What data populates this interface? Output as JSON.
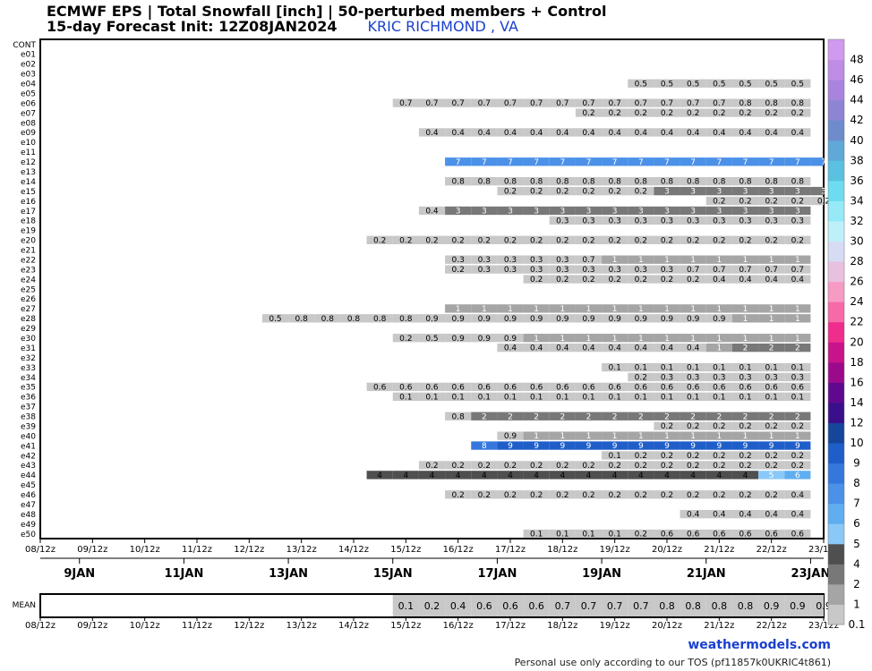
{
  "header": {
    "line1": "ECMWF EPS | Total Snowfall [inch] | 50-perturbed members + Control",
    "line2_prefix": "15-day Forecast Init: 12Z08JAN2024",
    "location": "KRIC RICHMOND      , VA"
  },
  "footer": {
    "brand": "weathermodels.com",
    "tos": "Personal use only according to our TOS (pf11857k0UKRIC4t861)"
  },
  "chart_data": {
    "type": "heatmap",
    "title": "ECMWF EPS | Total Snowfall [inch] | 50-perturbed members + Control",
    "members": [
      "CONT",
      "e01",
      "e02",
      "e03",
      "e04",
      "e05",
      "e06",
      "e07",
      "e08",
      "e09",
      "e10",
      "e11",
      "e12",
      "e13",
      "e14",
      "e15",
      "e16",
      "e17",
      "e18",
      "e19",
      "e20",
      "e21",
      "e22",
      "e23",
      "e24",
      "e25",
      "e26",
      "e27",
      "e28",
      "e29",
      "e30",
      "e31",
      "e32",
      "e33",
      "e34",
      "e35",
      "e36",
      "e37",
      "e38",
      "e39",
      "e40",
      "e41",
      "e42",
      "e43",
      "e44",
      "e45",
      "e46",
      "e47",
      "e48",
      "e49",
      "e50"
    ],
    "x_tick_labels": [
      "08/12z",
      "09/12z",
      "10/12z",
      "11/12z",
      "12/12z",
      "13/12z",
      "14/12z",
      "15/12z",
      "16/12z",
      "17/12z",
      "18/12z",
      "19/12z",
      "20/12z",
      "21/12z",
      "22/12z",
      "23/12z"
    ],
    "date_labels": [
      "9JAN",
      "11JAN",
      "13JAN",
      "15JAN",
      "17JAN",
      "19JAN",
      "21JAN",
      "23JAN"
    ],
    "time_step_hours": 12,
    "start": "08/12z",
    "rows": {
      "e04": {
        "start": 23,
        "values": [
          0.5,
          0.5,
          0.5,
          0.5,
          0.5,
          0.5,
          0.5
        ]
      },
      "e06": {
        "start": 14,
        "values": [
          0.7,
          0.7,
          0.7,
          0.7,
          0.7,
          0.7,
          0.7,
          0.7,
          0.7,
          0.7,
          0.7,
          0.7,
          0.7,
          0.8,
          0.8,
          0.8
        ]
      },
      "e07": {
        "start": 21,
        "values": [
          0.2,
          0.2,
          0.2,
          0.2,
          0.2,
          0.2,
          0.2,
          0.2,
          0.2
        ]
      },
      "e09": {
        "start": 15,
        "values": [
          0.4,
          0.4,
          0.4,
          0.4,
          0.4,
          0.4,
          0.4,
          0.4,
          0.4,
          0.4,
          0.4,
          0.4,
          0.4,
          0.4,
          0.4
        ]
      },
      "e12": {
        "start": 16,
        "values": [
          7,
          7,
          7,
          7,
          7,
          7,
          7,
          7,
          7,
          7,
          7,
          7,
          7,
          7,
          7
        ]
      },
      "e14": {
        "start": 16,
        "values": [
          0.8,
          0.8,
          0.8,
          0.8,
          0.8,
          0.8,
          0.8,
          0.8,
          0.8,
          0.8,
          0.8,
          0.8,
          0.8,
          0.8
        ]
      },
      "e15": {
        "start": 18,
        "values": [
          0.2,
          0.2,
          0.2,
          0.2,
          0.2,
          0.2,
          3,
          3,
          3,
          3,
          3,
          3,
          3
        ]
      },
      "e16": {
        "start": 26,
        "values": [
          0.2,
          0.2,
          0.2,
          0.2,
          0.2
        ]
      },
      "e17": {
        "start": 15,
        "values": [
          0.4,
          3,
          3,
          3,
          3,
          3,
          3,
          3,
          3,
          3,
          3,
          3,
          3,
          3,
          3
        ]
      },
      "e18": {
        "start": 20,
        "values": [
          0.3,
          0.3,
          0.3,
          0.3,
          0.3,
          0.3,
          0.3,
          0.3,
          0.3,
          0.3
        ]
      },
      "e20": {
        "start": 13,
        "values": [
          0.2,
          0.2,
          0.2,
          0.2,
          0.2,
          0.2,
          0.2,
          0.2,
          0.2,
          0.2,
          0.2,
          0.2,
          0.2,
          0.2,
          0.2,
          0.2,
          0.2
        ]
      },
      "e22": {
        "start": 16,
        "values": [
          0.3,
          0.3,
          0.3,
          0.3,
          0.3,
          0.7,
          1,
          1,
          1,
          1,
          1,
          1,
          1,
          1
        ]
      },
      "e23": {
        "start": 16,
        "values": [
          0.2,
          0.3,
          0.3,
          0.3,
          0.3,
          0.3,
          0.3,
          0.3,
          0.3,
          0.7,
          0.7,
          0.7,
          0.7,
          0.7
        ]
      },
      "e24": {
        "start": 19,
        "values": [
          0.2,
          0.2,
          0.2,
          0.2,
          0.2,
          0.2,
          0.2,
          0.4,
          0.4,
          0.4,
          0.4
        ]
      },
      "e27": {
        "start": 16,
        "values": [
          1,
          1,
          1,
          1,
          1,
          1,
          1,
          1,
          1,
          1,
          1,
          1,
          1,
          1
        ]
      },
      "e28": {
        "start": 9,
        "values": [
          0.5,
          0.8,
          0.8,
          0.8,
          0.8,
          0.8,
          0.9,
          0.9,
          0.9,
          0.9,
          0.9,
          0.9,
          0.9,
          0.9,
          0.9,
          0.9,
          0.9,
          0.9,
          1,
          1,
          1
        ]
      },
      "e30": {
        "start": 14,
        "values": [
          0.2,
          0.5,
          0.9,
          0.9,
          0.9,
          1.0,
          1.0,
          1.0,
          1.0,
          1.0,
          1.0,
          1.0,
          1.0,
          1.0,
          1.0,
          1.0
        ]
      },
      "e31": {
        "start": 18,
        "values": [
          0.4,
          0.4,
          0.4,
          0.4,
          0.4,
          0.4,
          0.4,
          0.4,
          1,
          2,
          2,
          2
        ]
      },
      "e33": {
        "start": 22,
        "values": [
          0.1,
          0.1,
          0.1,
          0.1,
          0.1,
          0.1,
          0.1,
          0.1
        ]
      },
      "e34": {
        "start": 23,
        "values": [
          0.2,
          0.3,
          0.3,
          0.3,
          0.3,
          0.3,
          0.3
        ]
      },
      "e35": {
        "start": 13,
        "values": [
          0.6,
          0.6,
          0.6,
          0.6,
          0.6,
          0.6,
          0.6,
          0.6,
          0.6,
          0.6,
          0.6,
          0.6,
          0.6,
          0.6,
          0.6,
          0.6,
          0.6
        ]
      },
      "e36": {
        "start": 14,
        "values": [
          0.1,
          0.1,
          0.1,
          0.1,
          0.1,
          0.1,
          0.1,
          0.1,
          0.1,
          0.1,
          0.1,
          0.1,
          0.1,
          0.1,
          0.1,
          0.1
        ]
      },
      "e38": {
        "start": 16,
        "values": [
          0.8,
          2,
          2,
          2,
          2,
          2,
          2,
          2,
          2,
          2,
          2,
          2,
          2,
          2
        ]
      },
      "e39": {
        "start": 24,
        "values": [
          0.2,
          0.2,
          0.2,
          0.2,
          0.2,
          0.2
        ]
      },
      "e40": {
        "start": 18,
        "values": [
          0.9,
          1.0,
          1.0,
          1.0,
          1.0,
          1.0,
          1.0,
          1.0,
          1.0,
          1.0,
          1.0,
          1.0
        ]
      },
      "e41": {
        "start": 17,
        "values": [
          8,
          9,
          9,
          9,
          9,
          9,
          9,
          9,
          9,
          9,
          9,
          9,
          9
        ]
      },
      "e42": {
        "start": 22,
        "values": [
          0.1,
          0.2,
          0.2,
          0.2,
          0.2,
          0.2,
          0.2,
          0.2
        ]
      },
      "e43": {
        "start": 15,
        "values": [
          0.2,
          0.2,
          0.2,
          0.2,
          0.2,
          0.2,
          0.2,
          0.2,
          0.2,
          0.2,
          0.2,
          0.2,
          0.2,
          0.2,
          0.2
        ]
      },
      "e44": {
        "start": 13,
        "values": [
          4,
          4,
          4,
          4,
          4,
          4,
          4,
          4,
          4,
          4,
          4,
          4,
          4,
          4,
          4,
          5,
          6
        ]
      },
      "e46": {
        "start": 16,
        "values": [
          0.2,
          0.2,
          0.2,
          0.2,
          0.2,
          0.2,
          0.2,
          0.2,
          0.2,
          0.2,
          0.2,
          0.2,
          0.2,
          0.4
        ]
      },
      "e48": {
        "start": 25,
        "values": [
          0.4,
          0.4,
          0.4,
          0.4,
          0.4
        ]
      },
      "e50": {
        "start": 19,
        "values": [
          0.1,
          0.1,
          0.1,
          0.1,
          0.2,
          0.6,
          0.6,
          0.6,
          0.6,
          0.6,
          0.6
        ]
      }
    },
    "mean": {
      "label": "MEAN",
      "start": 14,
      "values": [
        0.1,
        0.2,
        0.4,
        0.6,
        0.6,
        0.6,
        0.7,
        0.7,
        0.7,
        0.7,
        0.8,
        0.8,
        0.8,
        0.8,
        0.9,
        0.9,
        0.9
      ]
    },
    "colorbar": {
      "levels": [
        0.1,
        1,
        2,
        4,
        5,
        6,
        7,
        8,
        9,
        10,
        12,
        14,
        16,
        18,
        20,
        22,
        24,
        26,
        28,
        30,
        32,
        34,
        36,
        38,
        40,
        42,
        44,
        46,
        48
      ],
      "colors": [
        "#c8c8c8",
        "#a5a5a5",
        "#787878",
        "#4f4f4f",
        "#8ac8f7",
        "#60aef0",
        "#4b91e8",
        "#3577dc",
        "#1f5ec8",
        "#15469c",
        "#3a0f8c",
        "#5f0a8e",
        "#9c0a8c",
        "#c8148c",
        "#ee2d8c",
        "#f76aa8",
        "#f79ac4",
        "#e8c0e0",
        "#d6dcf4",
        "#bef0fa",
        "#96eaf8",
        "#6edcf0",
        "#5ac2e0",
        "#5fa8d8",
        "#6e8ccc",
        "#8e84d4",
        "#a884de",
        "#bf8ce6",
        "#d09aee"
      ]
    }
  }
}
